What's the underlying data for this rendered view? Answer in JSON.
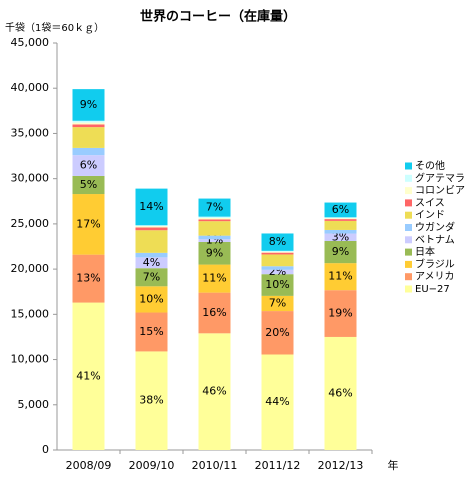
{
  "chart_data": {
    "type": "stacked_bar",
    "title": "世界のコーヒー（在庫量）",
    "y_label": "千袋（1袋＝60ｋｇ）",
    "x_label": "年",
    "categories": [
      "2008/09",
      "2009/10",
      "2010/11",
      "2011/12",
      "2012/13"
    ],
    "ylim": [
      0,
      45000
    ],
    "yticks": [
      0,
      {
        "value": 5000,
        "label": "5,000"
      },
      {
        "value": 10000,
        "label": "10,000"
      },
      {
        "value": 15000,
        "label": "15,000"
      },
      {
        "value": 20000,
        "label": "20,000"
      },
      {
        "value": 25000,
        "label": "25,000"
      },
      {
        "value": 30000,
        "label": "30,000"
      },
      {
        "value": 35000,
        "label": "35,000"
      },
      {
        "value": 40000,
        "label": "40,000"
      },
      {
        "value": 45000,
        "label": "45,000"
      }
    ],
    "grid": false,
    "legend": "right",
    "series": [
      {
        "name": "EU−27",
        "color": "#ffff99",
        "values": [
          16300,
          10900,
          12900,
          10560,
          12500
        ],
        "value_labels": [
          "41%",
          "38%",
          "46%",
          "44%",
          "46%"
        ]
      },
      {
        "name": "アメリカ",
        "color": "#ff9966",
        "values": [
          5300,
          4300,
          4500,
          4800,
          5170
        ],
        "value_labels": [
          "13%",
          "15%",
          "16%",
          "20%",
          "19%"
        ]
      },
      {
        "name": "ブラジル",
        "color": "#ffcc33",
        "values": [
          6700,
          2900,
          3100,
          1680,
          2990
        ],
        "value_labels": [
          "17%",
          "10%",
          "11%",
          "7%",
          "11%"
        ]
      },
      {
        "name": "日本",
        "color": "#99bb55",
        "values": [
          2000,
          2000,
          2500,
          2400,
          2450
        ],
        "value_labels": [
          "5%",
          "7%",
          "9%",
          "10%",
          "9%"
        ]
      },
      {
        "name": "ベトナム",
        "color": "#ccccff",
        "values": [
          2300,
          1200,
          300,
          480,
          820
        ],
        "value_labels": [
          "6%",
          "4%",
          "1%",
          "2%",
          "3%"
        ]
      },
      {
        "name": "ウガンダ",
        "color": "#99ccff",
        "values": [
          800,
          500,
          400,
          400,
          400
        ]
      },
      {
        "name": "インド",
        "color": "#eedd55",
        "values": [
          2300,
          2500,
          1600,
          1300,
          1000
        ]
      },
      {
        "name": "スイス",
        "color": "#ff6666",
        "values": [
          300,
          300,
          200,
          200,
          200
        ]
      },
      {
        "name": "コロンビア",
        "color": "#ffffcc",
        "values": [
          200,
          150,
          150,
          100,
          100
        ]
      },
      {
        "name": "グアテマラ",
        "color": "#ccffff",
        "values": [
          200,
          100,
          150,
          100,
          100
        ]
      },
      {
        "name": "その他",
        "color": "#11ccee",
        "values": [
          3500,
          4050,
          2000,
          1920,
          1630
        ],
        "value_labels": [
          "9%",
          "14%",
          "7%",
          "8%",
          "6%"
        ]
      }
    ]
  }
}
